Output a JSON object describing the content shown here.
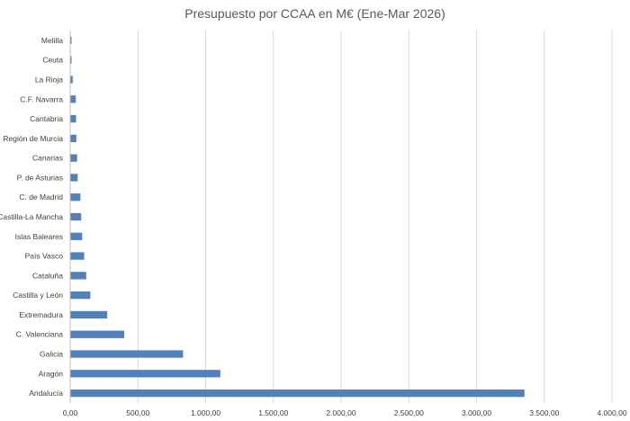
{
  "chart_data": {
    "type": "bar",
    "orientation": "horizontal",
    "title": "Presupuesto por CCAA en M€ (Ene-Mar 2026)",
    "xlabel": "",
    "ylabel": "",
    "xlim": [
      0,
      4000
    ],
    "xticks": [
      0,
      500,
      1000,
      1500,
      2000,
      2500,
      3000,
      3500,
      4000
    ],
    "xtick_labels": [
      "0,00",
      "500,00",
      "1.000,00",
      "1.500,00",
      "2.000,00",
      "2.500,00",
      "3.000,00",
      "3.500,00",
      "4.000,00"
    ],
    "grid": true,
    "bar_color": "#4f81bd",
    "categories": [
      "Melilla",
      "Ceuta",
      "La Rioja",
      "C.F. Navarra",
      "Cantabria",
      "Región de Murcia",
      "Canarias",
      "P. de Asturias",
      "C. de Madrid",
      "Castilla-La Mancha",
      "Islas Baleares",
      "País Vasco",
      "Cataluña",
      "Castilla y León",
      "Extremadura",
      "C. Valenciana",
      "Galicia",
      "Aragón",
      "Andalucía"
    ],
    "values": [
      3,
      5,
      15,
      38,
      40,
      42,
      48,
      52,
      72,
      78,
      85,
      100,
      115,
      145,
      270,
      395,
      830,
      1105,
      3350
    ]
  }
}
